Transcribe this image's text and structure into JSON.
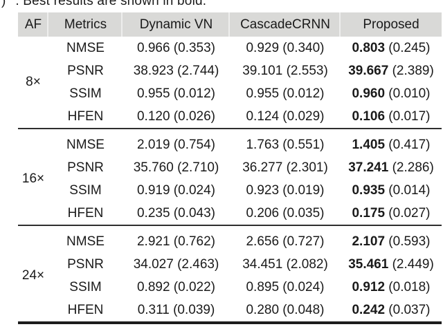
{
  "caption": {
    "clipped_fragment": ")",
    "text": ". Best results are shown in bold."
  },
  "table": {
    "columns": [
      "AF",
      "Metrics",
      "Dynamic VN",
      "CascadeCRNN",
      "Proposed"
    ],
    "groups": [
      {
        "af": "8×",
        "rows": [
          {
            "metric": "NMSE",
            "cells": [
              {
                "value": "0.966",
                "std": "0.353"
              },
              {
                "value": "0.929",
                "std": "0.340"
              },
              {
                "value": "0.803",
                "std": "0.245",
                "bold": true
              }
            ]
          },
          {
            "metric": "PSNR",
            "cells": [
              {
                "value": "38.923",
                "std": "2.744"
              },
              {
                "value": "39.101",
                "std": "2.553"
              },
              {
                "value": "39.667",
                "std": "2.389",
                "bold": true
              }
            ]
          },
          {
            "metric": "SSIM",
            "cells": [
              {
                "value": "0.955",
                "std": "0.012"
              },
              {
                "value": "0.955",
                "std": "0.012"
              },
              {
                "value": "0.960",
                "std": "0.010",
                "bold": true
              }
            ]
          },
          {
            "metric": "HFEN",
            "cells": [
              {
                "value": "0.120",
                "std": "0.026"
              },
              {
                "value": "0.124",
                "std": "0.029"
              },
              {
                "value": "0.106",
                "std": "0.017",
                "bold": true
              }
            ]
          }
        ]
      },
      {
        "af": "16×",
        "rows": [
          {
            "metric": "NMSE",
            "cells": [
              {
                "value": "2.019",
                "std": "0.754"
              },
              {
                "value": "1.763",
                "std": "0.551"
              },
              {
                "value": "1.405",
                "std": "0.417",
                "bold": true
              }
            ]
          },
          {
            "metric": "PSNR",
            "cells": [
              {
                "value": "35.760",
                "std": "2.710"
              },
              {
                "value": "36.277",
                "std": "2.301"
              },
              {
                "value": "37.241",
                "std": "2.286",
                "bold": true
              }
            ]
          },
          {
            "metric": "SSIM",
            "cells": [
              {
                "value": "0.919",
                "std": "0.024"
              },
              {
                "value": "0.923",
                "std": "0.019"
              },
              {
                "value": "0.935",
                "std": "0.014",
                "bold": true
              }
            ]
          },
          {
            "metric": "HFEN",
            "cells": [
              {
                "value": "0.235",
                "std": "0.043"
              },
              {
                "value": "0.206",
                "std": "0.035"
              },
              {
                "value": "0.175",
                "std": "0.027",
                "bold": true
              }
            ]
          }
        ]
      },
      {
        "af": "24×",
        "rows": [
          {
            "metric": "NMSE",
            "cells": [
              {
                "value": "2.921",
                "std": "0.762"
              },
              {
                "value": "2.656",
                "std": "0.727"
              },
              {
                "value": "2.107",
                "std": "0.593",
                "bold": true
              }
            ]
          },
          {
            "metric": "PSNR",
            "cells": [
              {
                "value": "34.027",
                "std": "2.463"
              },
              {
                "value": "34.451",
                "std": "2.082"
              },
              {
                "value": "35.461",
                "std": "2.449",
                "bold": true
              }
            ]
          },
          {
            "metric": "SSIM",
            "cells": [
              {
                "value": "0.892",
                "std": "0.022"
              },
              {
                "value": "0.895",
                "std": "0.024"
              },
              {
                "value": "0.912",
                "std": "0.018",
                "bold": true
              }
            ]
          },
          {
            "metric": "HFEN",
            "cells": [
              {
                "value": "0.311",
                "std": "0.039"
              },
              {
                "value": "0.280",
                "std": "0.048"
              },
              {
                "value": "0.242",
                "std": "0.037",
                "bold": true
              }
            ]
          }
        ]
      }
    ]
  },
  "colors": {
    "header_bg": "#d9d9d7",
    "text": "#1a1a1a",
    "rule": "#2e2e2e",
    "bottom_rule": "#1d1d1d"
  }
}
